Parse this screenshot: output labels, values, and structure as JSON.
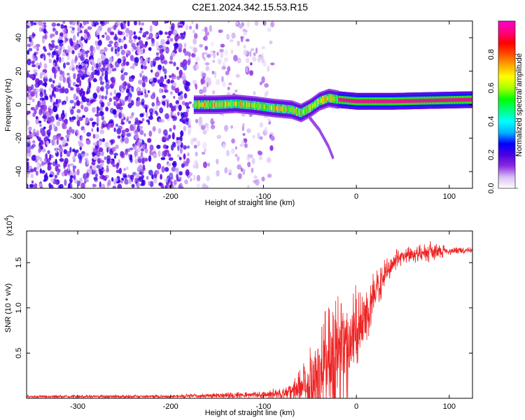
{
  "title": "C2E1.2024.342.15.53.R15",
  "chart_data": [
    {
      "type": "heatmap",
      "xlabel": "Height of straight line (km)",
      "ylabel": "Frequency (Hz)",
      "xlim": [
        -355,
        125
      ],
      "ylim": [
        -50,
        50
      ],
      "xticks": [
        -300,
        -200,
        -100,
        0,
        100
      ],
      "yticks": [
        -40,
        -20,
        0,
        20,
        40
      ],
      "colorbar": {
        "label": "Normalized spectral amplitude",
        "range": [
          0,
          1
        ],
        "ticks": [
          "0.0",
          "0.2",
          "0.4",
          "0.6",
          "0.8"
        ],
        "colors": [
          "#ffffff",
          "#d9bff5",
          "#8a2be2",
          "#4b00e0",
          "#0000ff",
          "#00b4ff",
          "#00ffff",
          "#00ff80",
          "#00ff00",
          "#aaff00",
          "#ffff00",
          "#ffaa00",
          "#ff5000",
          "#ff0000",
          "#ff0080",
          "#ff00c8"
        ]
      },
      "features": {
        "noise_region_x": [
          -355,
          -90
        ],
        "signal_trace": [
          [
            -175,
            0
          ],
          [
            -150,
            0
          ],
          [
            -130,
            0.5
          ],
          [
            -110,
            -0.5
          ],
          [
            -90,
            -2
          ],
          [
            -70,
            -3
          ],
          [
            -60,
            -5
          ],
          [
            -50,
            -2
          ],
          [
            -40,
            2
          ],
          [
            -30,
            4
          ],
          [
            -20,
            3
          ],
          [
            0,
            2
          ],
          [
            40,
            2
          ],
          [
            80,
            2.5
          ],
          [
            125,
            3
          ]
        ],
        "branch_trace": [
          [
            -50,
            -8
          ],
          [
            -40,
            -15
          ],
          [
            -30,
            -25
          ],
          [
            -25,
            -32
          ]
        ],
        "strong_band_x": [
          -20,
          125
        ]
      }
    },
    {
      "type": "line",
      "xlabel": "Height of straight line (km)",
      "ylabel": "SNR (10 * v/v)",
      "multiplier_label": "(x10",
      "multiplier_exp": "4",
      "xlim": [
        -355,
        125
      ],
      "ylim": [
        0,
        1.85
      ],
      "xticks": [
        -300,
        -200,
        -100,
        0,
        100
      ],
      "yticks": [
        "0.5",
        "1.0",
        "1.5"
      ],
      "line_color": "#ee2222",
      "envelope": [
        {
          "x": -355,
          "base": 0.02,
          "amp": 0.015
        },
        {
          "x": -200,
          "base": 0.02,
          "amp": 0.02
        },
        {
          "x": -160,
          "base": 0.03,
          "amp": 0.03
        },
        {
          "x": -100,
          "base": 0.04,
          "amp": 0.04
        },
        {
          "x": -70,
          "base": 0.06,
          "amp": 0.1
        },
        {
          "x": -55,
          "base": 0.15,
          "amp": 0.3
        },
        {
          "x": -40,
          "base": 0.3,
          "amp": 0.6
        },
        {
          "x": -25,
          "base": 0.45,
          "amp": 0.75
        },
        {
          "x": -10,
          "base": 0.6,
          "amp": 0.65
        },
        {
          "x": 5,
          "base": 0.8,
          "amp": 0.45
        },
        {
          "x": 20,
          "base": 1.15,
          "amp": 0.25
        },
        {
          "x": 35,
          "base": 1.45,
          "amp": 0.15
        },
        {
          "x": 50,
          "base": 1.58,
          "amp": 0.1
        },
        {
          "x": 80,
          "base": 1.62,
          "amp": 0.12
        },
        {
          "x": 100,
          "base": 1.63,
          "amp": 0.05
        },
        {
          "x": 125,
          "base": 1.64,
          "amp": 0.03
        }
      ]
    }
  ]
}
